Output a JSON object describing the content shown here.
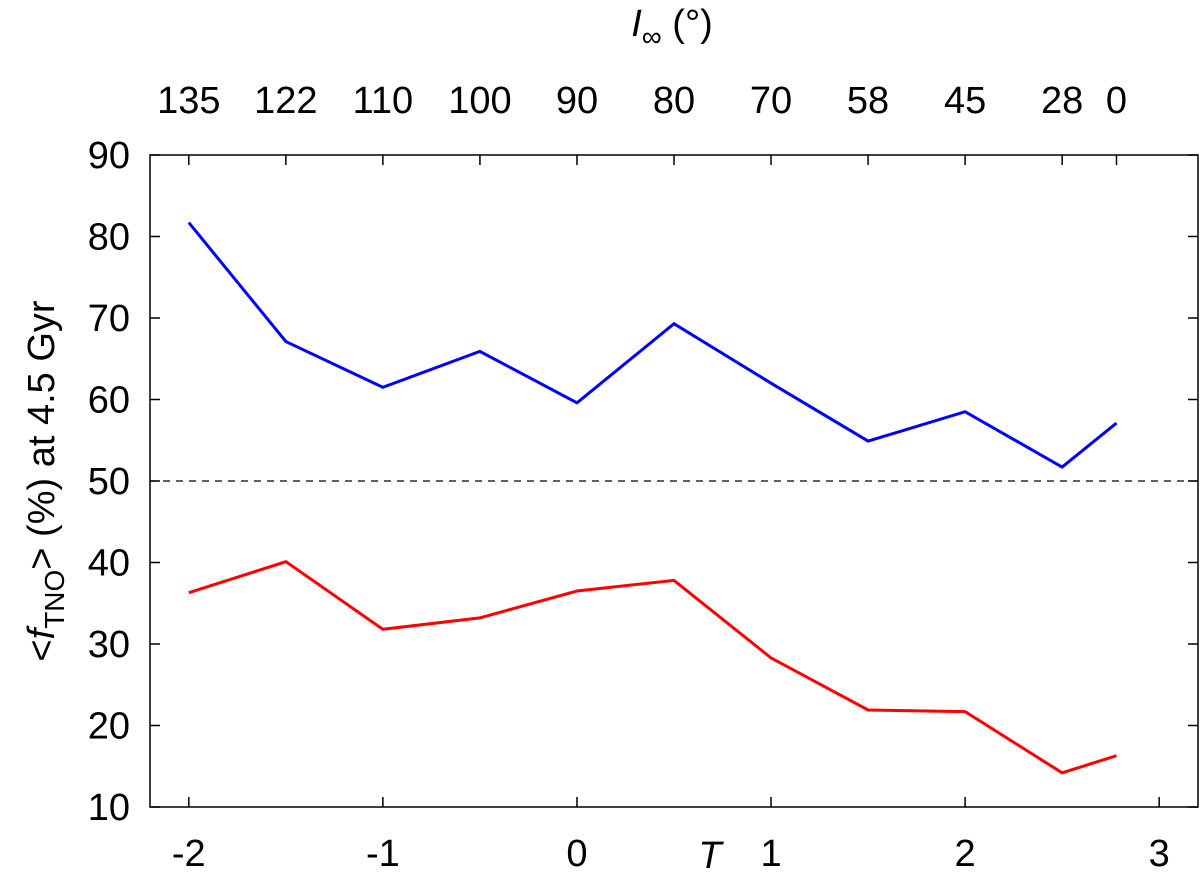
{
  "chart_data": {
    "type": "line",
    "xlabel": "T",
    "top_xlabel": {
      "prefix": "I",
      "sub": "∞",
      "suffix": " (°)"
    },
    "ylabel": {
      "prefix": "<",
      "f": "f",
      "sub": "TNO",
      "suffix": "> (%) at 4.5 Gyr"
    },
    "xlim": [
      -2.2,
      3.2
    ],
    "ylim": [
      10,
      90
    ],
    "x_ticks": [
      -2,
      -1,
      0,
      1,
      2,
      3
    ],
    "y_ticks": [
      10,
      20,
      30,
      40,
      50,
      60,
      70,
      80,
      90
    ],
    "top_ticks": [
      {
        "x": -2.0,
        "label": "135"
      },
      {
        "x": -1.5,
        "label": "122"
      },
      {
        "x": -1.0,
        "label": "110"
      },
      {
        "x": -0.5,
        "label": "100"
      },
      {
        "x": 0.0,
        "label": "90"
      },
      {
        "x": 0.5,
        "label": "80"
      },
      {
        "x": 1.0,
        "label": "70"
      },
      {
        "x": 1.5,
        "label": "58"
      },
      {
        "x": 2.0,
        "label": "45"
      },
      {
        "x": 2.5,
        "label": "28"
      },
      {
        "x": 2.78,
        "label": "0"
      }
    ],
    "reference_line": {
      "y": 50,
      "style": "dashed",
      "color": "#000000"
    },
    "grid": false,
    "series": [
      {
        "color": "#0000ff",
        "x": [
          -2.0,
          -1.5,
          -1.0,
          -0.5,
          0.0,
          0.5,
          1.0,
          1.5,
          2.0,
          2.5,
          2.78
        ],
        "y": [
          81.7,
          67.1,
          61.5,
          65.9,
          59.6,
          69.3,
          62.0,
          54.9,
          58.5,
          51.7,
          57.1
        ]
      },
      {
        "color": "#ff0000",
        "x": [
          -2.0,
          -1.5,
          -1.0,
          -0.5,
          0.0,
          0.5,
          1.0,
          1.5,
          2.0,
          2.5,
          2.78
        ],
        "y": [
          36.3,
          40.1,
          31.8,
          33.2,
          36.5,
          37.8,
          28.3,
          21.9,
          21.7,
          14.2,
          16.3
        ]
      }
    ]
  }
}
